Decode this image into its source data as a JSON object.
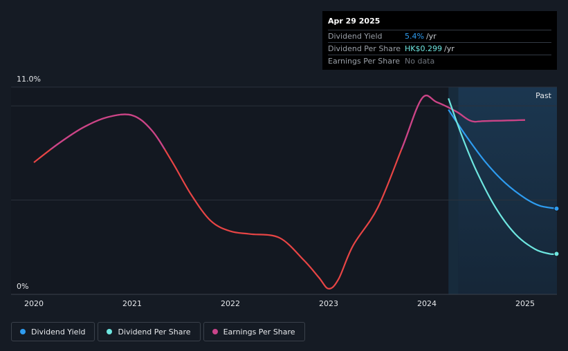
{
  "tooltip": {
    "date": "Apr 29 2025",
    "rows": [
      {
        "label": "Dividend Yield",
        "value": "5.4%",
        "unit": "/yr"
      },
      {
        "label": "Dividend Per Share",
        "value": "HK$0.299",
        "unit": "/yr"
      },
      {
        "label": "Earnings Per Share",
        "value": "No data",
        "unit": ""
      }
    ]
  },
  "past_label": "Past",
  "legend": [
    {
      "label": "Dividend Yield",
      "color": "#2e9cf0"
    },
    {
      "label": "Dividend Per Share",
      "color": "#6ee6e0"
    },
    {
      "label": "Earnings Per Share",
      "color": "#c9448a"
    }
  ],
  "chart_data": {
    "type": "line",
    "ylim": [
      0,
      11
    ],
    "y_tick_labels": [
      "0%",
      "11.0%"
    ],
    "x_ticks": [
      2020,
      2021,
      2022,
      2023,
      2024,
      2025
    ],
    "xlim": [
      2020.0,
      2025.32
    ],
    "past_region_start": 2024.32,
    "series": [
      {
        "name": "Earnings Per Share",
        "color_pos": "#e84545",
        "color_neg": "#c9448a",
        "color_split_above": 7.7,
        "x": [
          2020.0,
          2020.25,
          2020.5,
          2020.75,
          2021.0,
          2021.2,
          2021.4,
          2021.6,
          2021.8,
          2022.0,
          2022.2,
          2022.5,
          2022.75,
          2022.9,
          2023.0,
          2023.1,
          2023.25,
          2023.5,
          2023.75,
          2023.95,
          2024.1,
          2024.3,
          2024.45,
          2024.6,
          2025.0
        ],
        "y": [
          7.0,
          8.0,
          8.85,
          9.4,
          9.5,
          8.7,
          7.1,
          5.3,
          3.9,
          3.35,
          3.2,
          3.0,
          1.8,
          0.9,
          0.3,
          0.8,
          2.6,
          4.6,
          7.8,
          10.4,
          10.2,
          9.7,
          9.2,
          9.2,
          9.25
        ]
      },
      {
        "name": "Dividend Yield",
        "color": "#2e9cf0",
        "x": [
          2024.22,
          2024.4,
          2024.6,
          2024.8,
          2025.0,
          2025.15,
          2025.32
        ],
        "y": [
          9.8,
          8.4,
          7.0,
          5.9,
          5.1,
          4.7,
          4.55
        ]
      },
      {
        "name": "Dividend Per Share",
        "color": "#6ee6e0",
        "x": [
          2024.22,
          2024.35,
          2024.5,
          2024.7,
          2024.9,
          2025.1,
          2025.25,
          2025.32
        ],
        "y": [
          10.4,
          8.5,
          6.6,
          4.6,
          3.2,
          2.4,
          2.15,
          2.15
        ]
      }
    ]
  }
}
